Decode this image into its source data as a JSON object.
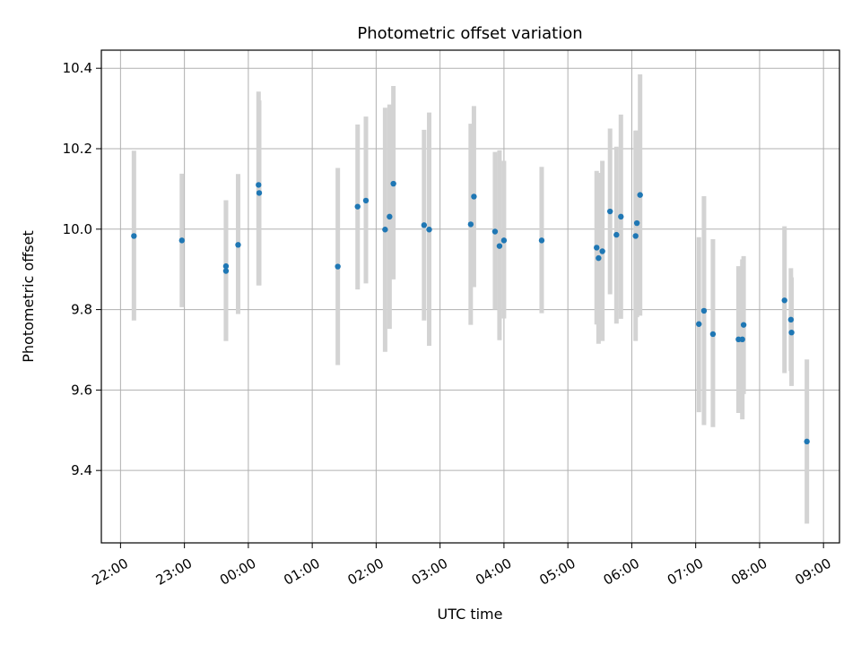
{
  "chart_data": {
    "type": "scatter",
    "title": "Photometric offset variation",
    "xlabel": "UTC time",
    "ylabel": "Photometric offset",
    "grid": true,
    "xlim_hours": [
      -2.3,
      9.25
    ],
    "ylim": [
      9.22,
      10.445
    ],
    "x_ticks": [
      {
        "hour": -2,
        "label": "22:00"
      },
      {
        "hour": -1,
        "label": "23:00"
      },
      {
        "hour": 0,
        "label": "00:00"
      },
      {
        "hour": 1,
        "label": "01:00"
      },
      {
        "hour": 2,
        "label": "02:00"
      },
      {
        "hour": 3,
        "label": "03:00"
      },
      {
        "hour": 4,
        "label": "04:00"
      },
      {
        "hour": 5,
        "label": "05:00"
      },
      {
        "hour": 6,
        "label": "06:00"
      },
      {
        "hour": 7,
        "label": "07:00"
      },
      {
        "hour": 8,
        "label": "08:00"
      },
      {
        "hour": 9,
        "label": "09:00"
      }
    ],
    "y_ticks": [
      {
        "value": 9.4,
        "label": "9.4"
      },
      {
        "value": 9.6,
        "label": "9.6"
      },
      {
        "value": 9.8,
        "label": "9.8"
      },
      {
        "value": 10.0,
        "label": "10.0"
      },
      {
        "value": 10.2,
        "label": "10.2"
      },
      {
        "value": 10.4,
        "label": "10.4"
      }
    ],
    "colors": {
      "point": "#1f77b4",
      "errorbar": "#d3d3d3",
      "grid": "#b0b0b0"
    },
    "points": [
      {
        "t": -1.79,
        "y": 9.983,
        "lo": 9.773,
        "hi": 10.195
      },
      {
        "t": -1.04,
        "y": 9.972,
        "lo": 9.806,
        "hi": 10.138
      },
      {
        "t": -0.35,
        "y": 9.908,
        "lo": 9.722,
        "hi": 10.072
      },
      {
        "t": -0.35,
        "y": 9.896,
        "lo": 9.722,
        "hi": 10.072
      },
      {
        "t": -0.16,
        "y": 9.961,
        "lo": 9.789,
        "hi": 10.137
      },
      {
        "t": 0.16,
        "y": 10.11,
        "lo": 9.86,
        "hi": 10.342
      },
      {
        "t": 0.17,
        "y": 10.09,
        "lo": 9.86,
        "hi": 10.32
      },
      {
        "t": 1.4,
        "y": 9.907,
        "lo": 9.662,
        "hi": 10.152
      },
      {
        "t": 1.71,
        "y": 10.056,
        "lo": 9.85,
        "hi": 10.26
      },
      {
        "t": 1.84,
        "y": 10.071,
        "lo": 9.865,
        "hi": 10.28
      },
      {
        "t": 2.14,
        "y": 9.999,
        "lo": 9.695,
        "hi": 10.302
      },
      {
        "t": 2.21,
        "y": 10.031,
        "lo": 9.752,
        "hi": 10.31
      },
      {
        "t": 2.27,
        "y": 10.113,
        "lo": 9.875,
        "hi": 10.356
      },
      {
        "t": 2.75,
        "y": 10.01,
        "lo": 9.773,
        "hi": 10.247
      },
      {
        "t": 2.83,
        "y": 9.999,
        "lo": 9.71,
        "hi": 10.29
      },
      {
        "t": 3.48,
        "y": 10.012,
        "lo": 9.762,
        "hi": 10.262
      },
      {
        "t": 3.53,
        "y": 10.081,
        "lo": 9.856,
        "hi": 10.306
      },
      {
        "t": 3.86,
        "y": 9.994,
        "lo": 9.8,
        "hi": 10.192
      },
      {
        "t": 3.93,
        "y": 9.958,
        "lo": 9.724,
        "hi": 10.196
      },
      {
        "t": 4.0,
        "y": 9.972,
        "lo": 9.778,
        "hi": 10.17
      },
      {
        "t": 4.59,
        "y": 9.972,
        "lo": 9.791,
        "hi": 10.155
      },
      {
        "t": 5.45,
        "y": 9.954,
        "lo": 9.763,
        "hi": 10.145
      },
      {
        "t": 5.48,
        "y": 9.928,
        "lo": 9.715,
        "hi": 10.14
      },
      {
        "t": 5.54,
        "y": 9.945,
        "lo": 9.722,
        "hi": 10.17
      },
      {
        "t": 5.66,
        "y": 10.044,
        "lo": 9.838,
        "hi": 10.25
      },
      {
        "t": 5.76,
        "y": 9.986,
        "lo": 9.765,
        "hi": 10.205
      },
      {
        "t": 5.83,
        "y": 10.031,
        "lo": 9.777,
        "hi": 10.285
      },
      {
        "t": 6.06,
        "y": 9.983,
        "lo": 9.722,
        "hi": 10.245
      },
      {
        "t": 6.08,
        "y": 10.015,
        "lo": 9.781,
        "hi": 10.245
      },
      {
        "t": 6.13,
        "y": 10.085,
        "lo": 9.785,
        "hi": 10.385
      },
      {
        "t": 7.05,
        "y": 9.764,
        "lo": 9.545,
        "hi": 9.98
      },
      {
        "t": 7.13,
        "y": 9.797,
        "lo": 9.513,
        "hi": 10.082
      },
      {
        "t": 7.27,
        "y": 9.739,
        "lo": 9.508,
        "hi": 9.975
      },
      {
        "t": 7.67,
        "y": 9.726,
        "lo": 9.543,
        "hi": 9.908
      },
      {
        "t": 7.73,
        "y": 9.726,
        "lo": 9.527,
        "hi": 9.925
      },
      {
        "t": 7.75,
        "y": 9.762,
        "lo": 9.59,
        "hi": 9.933
      },
      {
        "t": 8.39,
        "y": 9.823,
        "lo": 9.642,
        "hi": 10.007
      },
      {
        "t": 8.49,
        "y": 9.775,
        "lo": 9.647,
        "hi": 9.903
      },
      {
        "t": 8.5,
        "y": 9.743,
        "lo": 9.61,
        "hi": 9.88
      },
      {
        "t": 8.74,
        "y": 9.472,
        "lo": 9.268,
        "hi": 9.676
      }
    ]
  }
}
